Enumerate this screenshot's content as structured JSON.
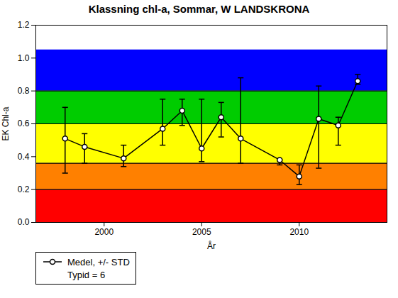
{
  "chart_data": {
    "type": "line",
    "title": "Klassning chl-a, Sommar, W LANDSKRONA",
    "xlabel": "År",
    "ylabel": "EK Chl-a",
    "x": [
      1998,
      1999,
      2001,
      2003,
      2004,
      2005,
      2006,
      2007,
      2009,
      2010,
      2011,
      2012,
      2013
    ],
    "series": [
      {
        "name": "Medel, +/- STD",
        "color": "black",
        "marker": "o",
        "values": [
          0.51,
          0.46,
          0.39,
          0.57,
          0.68,
          0.45,
          0.64,
          0.51,
          0.38,
          0.28,
          0.63,
          0.59,
          0.86
        ],
        "err_low": [
          0.21,
          0.1,
          0.05,
          0.1,
          0.09,
          0.08,
          0.12,
          0.15,
          0.03,
          0.05,
          0.3,
          0.12,
          0.02
        ],
        "err_high": [
          0.19,
          0.08,
          0.08,
          0.18,
          0.07,
          0.3,
          0.09,
          0.37,
          0.0,
          0.07,
          0.2,
          0.05,
          0.04
        ]
      }
    ],
    "legend_note": "Typid = 6",
    "bands": {
      "limits": [
        0.0,
        0.2,
        0.36,
        0.6,
        0.8,
        1.05
      ],
      "colors": [
        "#ff0000",
        "#ff8000",
        "#ffff00",
        "#00cc00",
        "#0000ff"
      ]
    },
    "xlim": [
      1996.5,
      2014.5
    ],
    "xticks": [
      2000,
      2005,
      2010
    ],
    "ylim": [
      0,
      1.2
    ],
    "yticks": [
      {
        "value": 0,
        "label": "0.0"
      },
      0.2,
      0.4,
      0.6,
      0.8,
      {
        "value": 1,
        "label": "1.0"
      },
      1.2
    ],
    "legend": "lower left",
    "grid": false
  }
}
